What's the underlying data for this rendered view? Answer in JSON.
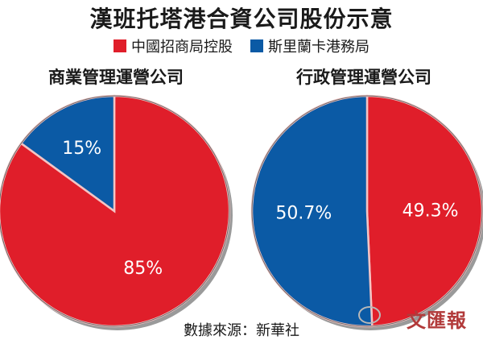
{
  "title": "漢班托塔港合資公司股份示意",
  "legend": [
    {
      "label": "中國招商局控股",
      "color": "#e01e2a"
    },
    {
      "label": "斯里蘭卡港務局",
      "color": "#0b5aa5"
    }
  ],
  "source": "數據來源：新華社",
  "logo_text": "文匯報",
  "chart_data": [
    {
      "type": "pie",
      "title": "商業管理運營公司",
      "slices": [
        {
          "name": "中國招商局控股",
          "value": 85,
          "label": "85%",
          "color": "#e01e2a"
        },
        {
          "name": "斯里蘭卡港務局",
          "value": 15,
          "label": "15%",
          "color": "#0b5aa5"
        }
      ]
    },
    {
      "type": "pie",
      "title": "行政管理運營公司",
      "slices": [
        {
          "name": "中國招商局控股",
          "value": 49.3,
          "label": "49.3%",
          "color": "#e01e2a"
        },
        {
          "name": "斯里蘭卡港務局",
          "value": 50.7,
          "label": "50.7%",
          "color": "#0b5aa5"
        }
      ]
    }
  ]
}
